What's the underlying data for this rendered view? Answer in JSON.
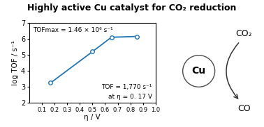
{
  "chart_data": {
    "type": "line",
    "title": "Highly active Cu catalyst for CO₂ reduction",
    "x_label": "η / V",
    "y_label": "log TOF / s⁻¹",
    "x": [
      0.17,
      0.5,
      0.65,
      0.85
    ],
    "values": [
      3.25,
      5.2,
      6.1,
      6.15
    ],
    "marker": "o",
    "xlim": [
      0.0,
      1.0
    ],
    "ylim": [
      2.0,
      7.0
    ],
    "xticks": [
      0.1,
      0.2,
      0.3,
      0.4,
      0.5,
      0.6,
      0.7,
      0.8,
      0.9,
      1.0
    ],
    "yticks": [
      2,
      3,
      4,
      5,
      6,
      7
    ],
    "grid": false,
    "annotations": [
      "TOFmax = 1.46 × 10⁶ s⁻¹",
      "TOF = 1,770 s⁻¹",
      "at η = 0. 17 V"
    ],
    "scheme_labels": {
      "catalyst": "Cu",
      "reactant": "CO₂",
      "product": "CO"
    }
  }
}
